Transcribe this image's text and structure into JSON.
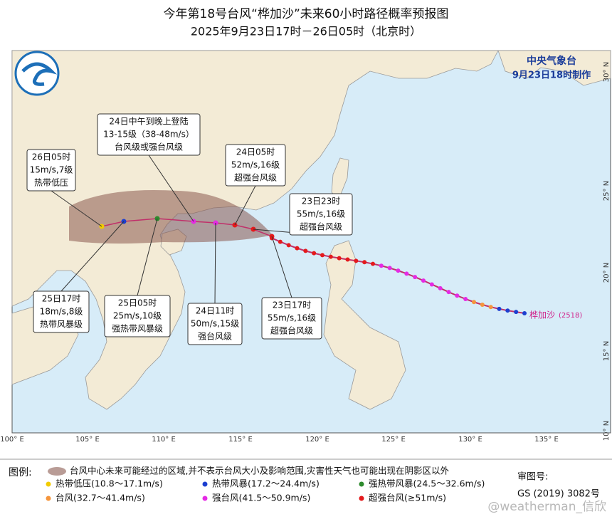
{
  "header": {
    "title": "今年第18号台风“桦加沙”未来60小时路径概率预报图",
    "subtitle": "2025年9月23日17时－26日05时（北京时）"
  },
  "agency": {
    "name": "中央气象台",
    "issued": "9月23日18时制作"
  },
  "map": {
    "lon_labels": [
      "100° E",
      "105° E",
      "110° E",
      "115° E",
      "120° E",
      "125° E",
      "130° E",
      "135° E"
    ],
    "lat_labels": [
      "30° N",
      "25° N",
      "20° N",
      "15° N",
      "10° N"
    ],
    "typhoon_name": "桦加沙",
    "typhoon_id": "(2518)"
  },
  "callouts": [
    {
      "lines": [
        "24日中午到晚上登陆",
        "13-15级（38-48m/s）",
        "台风级或强台风级"
      ]
    },
    {
      "lines": [
        "26日05时",
        "15m/s,7级",
        "热带低压"
      ]
    },
    {
      "lines": [
        "24日05时",
        "52m/s,16级",
        "超强台风级"
      ]
    },
    {
      "lines": [
        "23日23时",
        "55m/s,16级",
        "超强台风级"
      ]
    },
    {
      "lines": [
        "25日17时",
        "18m/s,8级",
        "热带风暴级"
      ]
    },
    {
      "lines": [
        "25日05时",
        "25m/s,10级",
        "强热带风暴级"
      ]
    },
    {
      "lines": [
        "24日11时",
        "50m/s,15级",
        "强台风级"
      ]
    },
    {
      "lines": [
        "23日17时",
        "55m/s,16级",
        "超强台风级"
      ]
    }
  ],
  "legend": {
    "title": "图例:",
    "cone": "台风中心未来可能经过的区域,并不表示台风大小及影响范围,灾害性天气也可能出现在阴影区以外",
    "items": [
      {
        "label": "热带低压(10.8～17.1m/s)",
        "color": "#f2cc00"
      },
      {
        "label": "热带风暴(17.2～24.4m/s)",
        "color": "#1c3fd0"
      },
      {
        "label": "强热带风暴(24.5～32.6m/s)",
        "color": "#2e8b2e"
      },
      {
        "label": "台风(32.7～41.4m/s)",
        "color": "#f5953c"
      },
      {
        "label": "强台风(41.5～50.9m/s)",
        "color": "#e52ae5"
      },
      {
        "label": "超强台风(≥51m/s)",
        "color": "#e41a1c"
      }
    ]
  },
  "footer": {
    "review_label": "审图号:",
    "review_number": "GS (2019) 3082号",
    "watermark": "@weatherman_信欣"
  }
}
